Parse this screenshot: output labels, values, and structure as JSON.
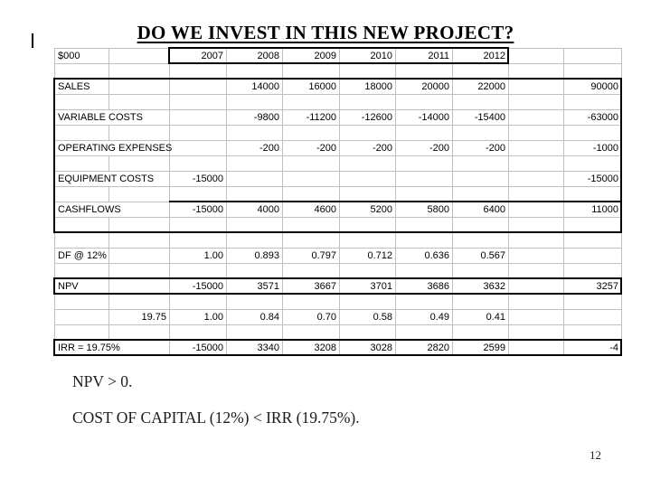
{
  "slide": {
    "title": "DO WE INVEST IN THIS NEW PROJECT?",
    "page_number": "12",
    "notes": {
      "npv": "NPV > 0.",
      "cost_of_capital": "COST OF CAPITAL (12%) < IRR (19.75%)."
    }
  },
  "colors": {
    "gridline": "#c0c0c0",
    "border": "#000000",
    "text": "#000000"
  },
  "grid": {
    "unit_label": "$000",
    "years": [
      "2007",
      "2008",
      "2009",
      "2010",
      "2011",
      "2012"
    ],
    "rows": [
      {
        "cells": [
          "$000",
          "",
          "2007",
          "2008",
          "2009",
          "2010",
          "2011",
          "2012",
          "",
          ""
        ]
      },
      {
        "cells": [
          "",
          "",
          "",
          "",
          "",
          "",
          "",
          "",
          "",
          ""
        ]
      },
      {
        "cells": [
          "SALES",
          "",
          "",
          "14000",
          "16000",
          "18000",
          "20000",
          "22000",
          "",
          "90000"
        ]
      },
      {
        "cells": [
          "",
          "",
          "",
          "",
          "",
          "",
          "",
          "",
          "",
          ""
        ]
      },
      {
        "cells": [
          "VARIABLE COSTS",
          "",
          "",
          "-9800",
          "-11200",
          "-12600",
          "-14000",
          "-15400",
          "",
          "-63000"
        ]
      },
      {
        "cells": [
          "",
          "",
          "",
          "",
          "",
          "",
          "",
          "",
          "",
          ""
        ]
      },
      {
        "cells": [
          "OPERATING EXPENSES",
          "",
          "",
          "-200",
          "-200",
          "-200",
          "-200",
          "-200",
          "",
          "-1000"
        ]
      },
      {
        "cells": [
          "",
          "",
          "",
          "",
          "",
          "",
          "",
          "",
          "",
          ""
        ]
      },
      {
        "cells": [
          "EQUIPMENT COSTS",
          "",
          "-15000",
          "",
          "",
          "",
          "",
          "",
          "",
          "-15000"
        ]
      },
      {
        "cells": [
          "",
          "",
          "",
          "",
          "",
          "",
          "",
          "",
          "",
          ""
        ]
      },
      {
        "cells": [
          "CASHFLOWS",
          "",
          "-15000",
          "4000",
          "4600",
          "5200",
          "5800",
          "6400",
          "",
          "11000"
        ]
      },
      {
        "cells": [
          "",
          "",
          "",
          "",
          "",
          "",
          "",
          "",
          "",
          ""
        ]
      },
      {
        "cells": [
          "",
          "",
          "",
          "",
          "",
          "",
          "",
          "",
          "",
          ""
        ]
      },
      {
        "cells": [
          "DF @ 12%",
          "",
          "1.00",
          "0.893",
          "0.797",
          "0.712",
          "0.636",
          "0.567",
          "",
          ""
        ]
      },
      {
        "cells": [
          "",
          "",
          "",
          "",
          "",
          "",
          "",
          "",
          "",
          ""
        ]
      },
      {
        "cells": [
          "NPV",
          "",
          "-15000",
          "3571",
          "3667",
          "3701",
          "3686",
          "3632",
          "",
          "3257"
        ]
      },
      {
        "cells": [
          "",
          "",
          "",
          "",
          "",
          "",
          "",
          "",
          "",
          ""
        ]
      },
      {
        "cells": [
          "",
          "19.75",
          "1.00",
          "0.84",
          "0.70",
          "0.58",
          "0.49",
          "0.41",
          "",
          ""
        ]
      },
      {
        "cells": [
          "",
          "",
          "",
          "",
          "",
          "",
          "",
          "",
          "",
          ""
        ]
      },
      {
        "cells": [
          "IRR = 19.75%",
          "",
          "-15000",
          "3340",
          "3208",
          "3028",
          "2820",
          "2599",
          "",
          "-4"
        ]
      }
    ]
  }
}
